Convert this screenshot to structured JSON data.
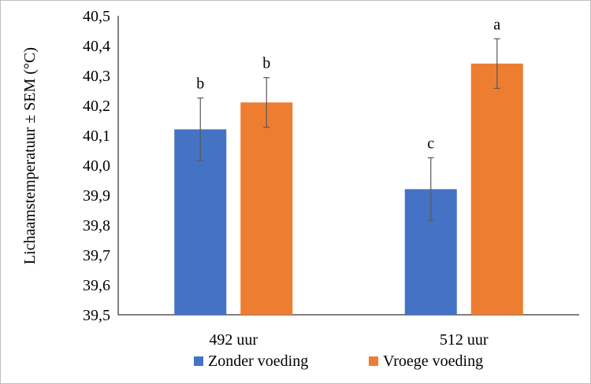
{
  "chart_data": {
    "type": "bar",
    "title": "",
    "xlabel": "",
    "ylabel": "Lichaamstemperatuur ± SEM (°C)",
    "ylim": [
      39.5,
      40.5
    ],
    "yticks": [
      "39,5",
      "39,6",
      "39,7",
      "39,8",
      "39,9",
      "40,0",
      "40,1",
      "40,2",
      "40,3",
      "40,4",
      "40,5"
    ],
    "categories": [
      "492 uur",
      "512 uur"
    ],
    "series": [
      {
        "name": "Zonder voeding",
        "color": "#4472C4",
        "values": [
          40.12,
          39.92
        ],
        "sem": [
          0.105,
          0.105
        ],
        "letters": [
          "b",
          "c"
        ]
      },
      {
        "name": "Vroege voeding",
        "color": "#ED7D31",
        "values": [
          40.21,
          40.34
        ],
        "sem": [
          0.083,
          0.083
        ],
        "letters": [
          "b",
          "a"
        ]
      }
    ],
    "grid": false,
    "legend_position": "bottom"
  }
}
